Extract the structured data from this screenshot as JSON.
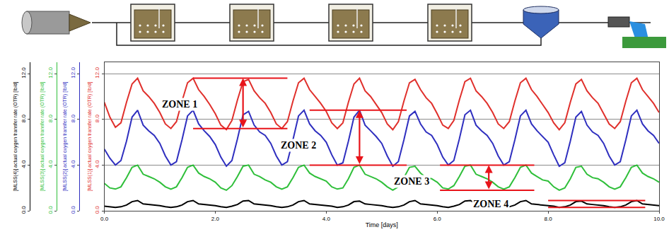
{
  "chart_data": {
    "type": "line",
    "xlabel": "Time [days]",
    "xlim": [
      0,
      10
    ],
    "xticks": [
      {
        "value": 0,
        "label": "0.0"
      },
      {
        "value": 2,
        "label": "2.0"
      },
      {
        "value": 4,
        "label": "4.0"
      },
      {
        "value": 6,
        "label": "6.0"
      },
      {
        "value": 8,
        "label": "8.0"
      },
      {
        "value": 10,
        "label": "10.0"
      }
    ],
    "ylim": [
      0,
      13
    ],
    "yticks": [
      {
        "value": 0,
        "label": "0.0"
      },
      {
        "value": 4,
        "label": "4.0"
      },
      {
        "value": 8,
        "label": "8.0"
      },
      {
        "value": 12,
        "label": "12.0"
      }
    ],
    "grid": true,
    "x": [
      0,
      0.1,
      0.2,
      0.3,
      0.4,
      0.5,
      0.6,
      0.7,
      0.8,
      0.9,
      1,
      1.1,
      1.2,
      1.3,
      1.4,
      1.5,
      1.6,
      1.7,
      1.8,
      1.9,
      2,
      2.1,
      2.2,
      2.3,
      2.4,
      2.5,
      2.6,
      2.7,
      2.8,
      2.9,
      3,
      3.1,
      3.2,
      3.3,
      3.4,
      3.5,
      3.6,
      3.7,
      3.8,
      3.9,
      4,
      4.1,
      4.2,
      4.3,
      4.4,
      4.5,
      4.6,
      4.7,
      4.8,
      4.9,
      5,
      5.1,
      5.2,
      5.3,
      5.4,
      5.5,
      5.6,
      5.7,
      5.8,
      5.9,
      6,
      6.1,
      6.2,
      6.3,
      6.4,
      6.5,
      6.6,
      6.7,
      6.8,
      6.9,
      7,
      7.1,
      7.2,
      7.3,
      7.4,
      7.5,
      7.6,
      7.7,
      7.8,
      7.9,
      8,
      8.1,
      8.2,
      8.3,
      8.4,
      8.5,
      8.6,
      8.7,
      8.8,
      8.9,
      9,
      9.1,
      9.2,
      9.3,
      9.4,
      9.5,
      9.6,
      9.7,
      9.8,
      9.9,
      10
    ],
    "series": [
      {
        "name": "[MLSS(1)] actual oxygen transfer rate (OTR) [lb/d]",
        "color": "#e0302c",
        "values": [
          9.5,
          8.2,
          7.3,
          7.7,
          9.5,
          11.1,
          11.6,
          10.5,
          10.0,
          9.4,
          8.6,
          7.6,
          7.2,
          7.8,
          9.6,
          11.2,
          11.6,
          10.6,
          10.0,
          9.3,
          8.5,
          7.5,
          7.1,
          7.9,
          9.7,
          11.3,
          11.5,
          10.5,
          9.9,
          9.4,
          8.6,
          7.6,
          7.2,
          7.8,
          9.6,
          11.2,
          11.6,
          10.6,
          10.0,
          9.4,
          8.7,
          7.7,
          7.2,
          7.7,
          9.5,
          11.1,
          11.6,
          10.5,
          10.0,
          9.3,
          8.6,
          7.6,
          7.1,
          7.8,
          9.6,
          11.2,
          11.5,
          10.6,
          9.9,
          9.4,
          8.5,
          7.5,
          7.2,
          7.9,
          9.7,
          11.3,
          11.6,
          10.5,
          10.0,
          9.4,
          8.6,
          7.6,
          7.2,
          7.8,
          9.6,
          11.2,
          11.6,
          10.6,
          10.0,
          9.3,
          8.6,
          7.7,
          7.1,
          7.7,
          9.5,
          11.1,
          11.5,
          10.5,
          9.9,
          9.4,
          8.5,
          7.6,
          7.2,
          7.8,
          9.6,
          11.2,
          11.6,
          10.6,
          10.0,
          9.4,
          8.6
        ]
      },
      {
        "name": "[MLSS(2)] actual oxygen transfer rate (OTR) [lb/d]",
        "color": "#2f2fbf",
        "values": [
          5.4,
          4.6,
          4.0,
          4.4,
          6.1,
          8.2,
          8.8,
          7.5,
          7.0,
          6.6,
          5.9,
          4.8,
          4.0,
          4.3,
          6.2,
          8.3,
          8.8,
          7.6,
          7.0,
          6.5,
          5.8,
          4.7,
          3.9,
          4.4,
          6.3,
          8.4,
          8.7,
          7.5,
          6.9,
          6.6,
          5.9,
          4.8,
          4.0,
          4.3,
          6.2,
          8.3,
          8.8,
          7.6,
          7.0,
          6.6,
          6.0,
          4.9,
          4.0,
          4.2,
          6.1,
          8.2,
          8.8,
          7.5,
          7.0,
          6.5,
          5.9,
          4.8,
          3.9,
          4.3,
          6.2,
          8.3,
          8.7,
          7.6,
          6.9,
          6.6,
          5.8,
          4.7,
          4.0,
          4.4,
          6.3,
          8.4,
          8.8,
          7.5,
          7.0,
          6.6,
          5.9,
          4.8,
          4.0,
          4.3,
          6.2,
          8.3,
          8.8,
          7.6,
          7.0,
          6.5,
          6.0,
          4.9,
          3.9,
          4.2,
          6.1,
          8.2,
          8.7,
          7.5,
          6.9,
          6.6,
          5.9,
          4.8,
          4.0,
          4.3,
          6.2,
          8.3,
          8.8,
          7.6,
          7.0,
          6.6,
          5.9
        ]
      },
      {
        "name": "[MLSS(3)] actual oxygen transfer rate (OTR) [lb/d]",
        "color": "#2fbf3a",
        "values": [
          2.4,
          2.0,
          1.9,
          2.1,
          2.9,
          3.8,
          4.0,
          3.2,
          3.0,
          2.8,
          2.5,
          2.1,
          1.9,
          2.1,
          2.9,
          3.8,
          4.0,
          3.3,
          3.0,
          2.8,
          2.5,
          2.0,
          1.8,
          2.2,
          3.0,
          3.9,
          4.0,
          3.2,
          3.0,
          2.7,
          2.5,
          2.1,
          1.9,
          2.1,
          2.9,
          3.8,
          4.0,
          3.3,
          3.0,
          2.8,
          2.6,
          2.1,
          1.9,
          2.0,
          2.8,
          3.8,
          4.0,
          3.2,
          3.0,
          2.8,
          2.5,
          2.1,
          1.8,
          2.1,
          2.9,
          3.8,
          3.9,
          3.3,
          2.9,
          2.8,
          2.5,
          2.0,
          1.9,
          2.2,
          3.0,
          3.9,
          4.0,
          3.2,
          3.0,
          2.8,
          2.5,
          2.1,
          1.9,
          2.1,
          2.9,
          3.8,
          4.0,
          3.3,
          3.0,
          2.7,
          2.6,
          2.1,
          1.8,
          2.0,
          2.8,
          3.8,
          3.9,
          3.2,
          2.9,
          2.8,
          2.5,
          2.1,
          1.9,
          2.1,
          2.9,
          3.8,
          4.0,
          3.3,
          3.0,
          2.8,
          2.5
        ]
      },
      {
        "name": "[MLSS(4)] actual oxygen transfer rate (OTR) [lb/d]",
        "color": "#000000",
        "values": [
          0.4,
          0.35,
          0.3,
          0.35,
          0.5,
          0.8,
          0.9,
          0.6,
          0.55,
          0.5,
          0.45,
          0.35,
          0.3,
          0.35,
          0.5,
          0.8,
          0.9,
          0.6,
          0.55,
          0.5,
          0.45,
          0.35,
          0.3,
          0.4,
          0.55,
          0.85,
          0.9,
          0.6,
          0.55,
          0.5,
          0.45,
          0.35,
          0.3,
          0.35,
          0.5,
          0.8,
          0.9,
          0.6,
          0.55,
          0.5,
          0.45,
          0.4,
          0.3,
          0.35,
          0.5,
          0.8,
          0.85,
          0.6,
          0.55,
          0.5,
          0.45,
          0.35,
          0.3,
          0.35,
          0.5,
          0.8,
          0.9,
          0.6,
          0.55,
          0.5,
          0.45,
          0.35,
          0.3,
          0.4,
          0.55,
          0.85,
          0.9,
          0.6,
          0.55,
          0.5,
          0.45,
          0.35,
          0.3,
          0.35,
          0.5,
          0.8,
          0.9,
          0.6,
          0.55,
          0.5,
          0.45,
          0.4,
          0.3,
          0.35,
          0.5,
          0.8,
          0.85,
          0.6,
          0.55,
          0.5,
          0.45,
          0.35,
          0.3,
          0.35,
          0.5,
          0.8,
          0.9,
          0.6,
          0.55,
          0.5,
          0.45
        ]
      }
    ],
    "annotations": [
      {
        "text": "ZONE 1",
        "x": 1.36,
        "y": 9.3,
        "high": 11.6,
        "low": 7.2,
        "from": 1.6,
        "to": 3.3,
        "arrow_x": 2.5
      },
      {
        "text": "ZONE 2",
        "x": 3.5,
        "y": 5.7,
        "high": 8.8,
        "low": 4.0,
        "from": 3.7,
        "to": 5.45,
        "arrow_x": 4.6
      },
      {
        "text": "ZONE 3",
        "x": 5.54,
        "y": 2.6,
        "high": 4.0,
        "low": 1.8,
        "from": 6.05,
        "to": 7.75,
        "arrow_x": 6.93
      },
      {
        "text": "ZONE 4",
        "x": 6.96,
        "y": 0.6,
        "high": 0.9,
        "low": 0.3,
        "from": 8.0,
        "to": 9.75
      }
    ]
  }
}
